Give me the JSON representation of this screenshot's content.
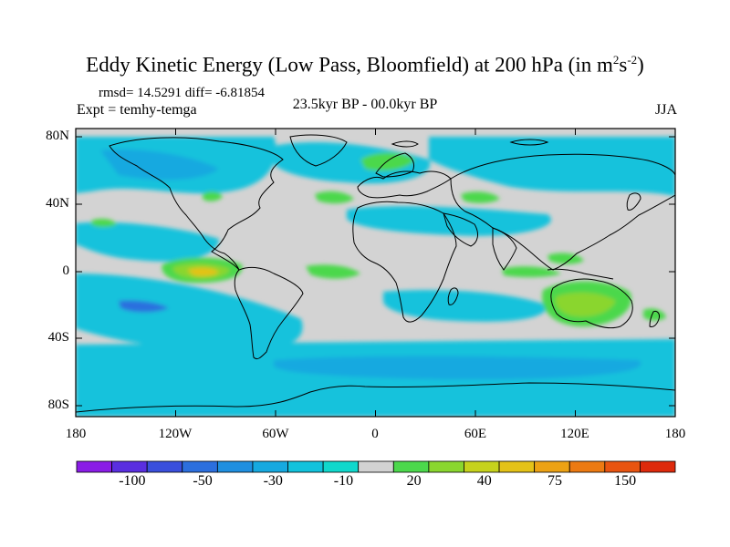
{
  "title": {
    "main": "Eddy Kinetic Energy (Low Pass, Bloomfield) at 200 hPa (in m",
    "sup1": "2",
    "mid": "s",
    "sup2": "-2",
    "end": ")"
  },
  "stats": "rmsd= 14.5291  diff= -6.81854",
  "experiment": "Expt = temhy-temga",
  "subtitle": "23.5kyr BP - 00.0kyr BP",
  "season": "JJA",
  "y_axis": [
    "80N",
    "40N",
    "0",
    "40S",
    "80S"
  ],
  "x_axis": [
    "180",
    "120W",
    "60W",
    "0",
    "60E",
    "120E",
    "180"
  ],
  "colorbar": {
    "labels": [
      "-100",
      "-50",
      "-30",
      "-10",
      "20",
      "40",
      "75",
      "150"
    ],
    "colors": [
      "#8a1ce6",
      "#5a2fe0",
      "#3a4fdc",
      "#2c6fde",
      "#1f8fe0",
      "#16a9e0",
      "#12c2dc",
      "#10d8cc",
      "#d2d2d2",
      "#4cd84c",
      "#8ad62e",
      "#c6d21c",
      "#e4c218",
      "#eca214",
      "#ec7a12",
      "#e85410",
      "#de2a0c"
    ]
  },
  "map": {
    "background": "#d3d3d3",
    "coast_color": "#000000"
  }
}
